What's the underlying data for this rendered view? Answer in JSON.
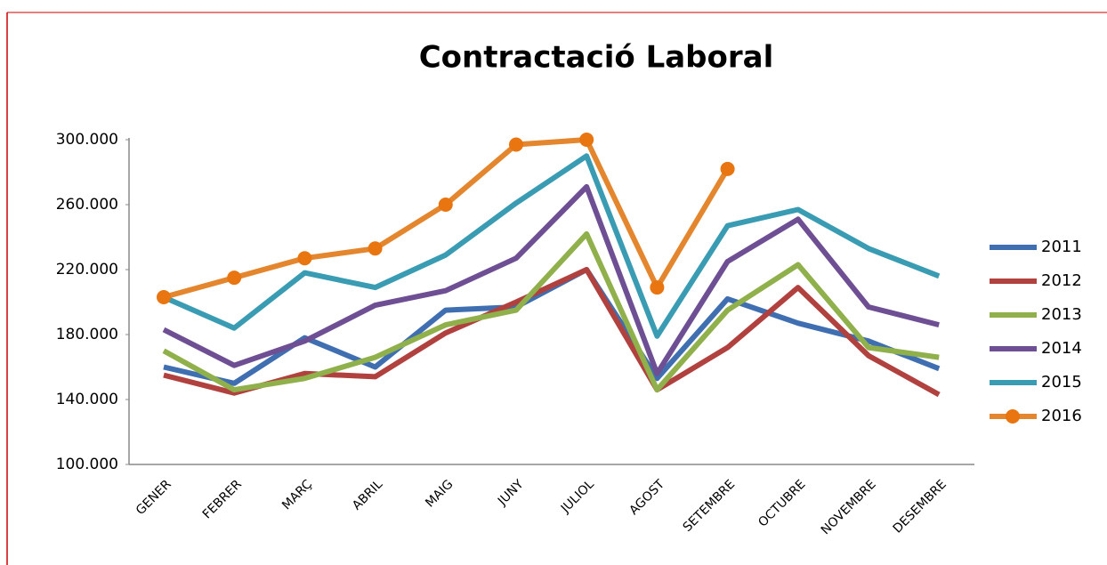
{
  "chart_data": {
    "type": "line",
    "title": "Contractació Laboral",
    "categories": [
      "GENER",
      "FEBRER",
      "MARÇ",
      "ABRIL",
      "MAIG",
      "JUNY",
      "JULIOL",
      "AGOST",
      "SETEMBRE",
      "OCTUBRE",
      "NOVEMBRE",
      "DESEMBRE"
    ],
    "series": [
      {
        "name": "2011",
        "color": "#3f6fb0",
        "values": [
          160000,
          150000,
          178000,
          160000,
          195000,
          197000,
          220000,
          153000,
          202000,
          187000,
          176000,
          159000
        ]
      },
      {
        "name": "2012",
        "color": "#b0413e",
        "values": [
          155000,
          144000,
          156000,
          154000,
          181000,
          200000,
          220000,
          146000,
          172000,
          209000,
          167000,
          143000
        ]
      },
      {
        "name": "2013",
        "color": "#8fb04a",
        "values": [
          170000,
          146000,
          153000,
          166000,
          186000,
          195000,
          242000,
          146000,
          195000,
          223000,
          172000,
          166000
        ]
      },
      {
        "name": "2014",
        "color": "#6f4f93",
        "values": [
          183000,
          161000,
          176000,
          198000,
          207000,
          227000,
          271000,
          156000,
          225000,
          251000,
          197000,
          186000
        ]
      },
      {
        "name": "2015",
        "color": "#3a9cb2",
        "values": [
          203000,
          184000,
          218000,
          209000,
          229000,
          261000,
          290000,
          179000,
          247000,
          257000,
          233000,
          216000
        ]
      },
      {
        "name": "2016",
        "color": "#e3862e",
        "marker_color": "#e8750f",
        "markers": true,
        "values": [
          203000,
          215000,
          227000,
          233000,
          260000,
          297000,
          300000,
          209000,
          282000,
          null,
          null,
          null
        ]
      }
    ],
    "ylim": [
      100000,
      300000
    ],
    "yticks": [
      {
        "value": 100000,
        "label": "100.000"
      },
      {
        "value": 140000,
        "label": "140.000"
      },
      {
        "value": 180000,
        "label": "180.000"
      },
      {
        "value": 220000,
        "label": "220.000"
      },
      {
        "value": 260000,
        "label": "260.000"
      },
      {
        "value": 300000,
        "label": "300.000"
      }
    ],
    "legend": "right",
    "grid": false
  }
}
